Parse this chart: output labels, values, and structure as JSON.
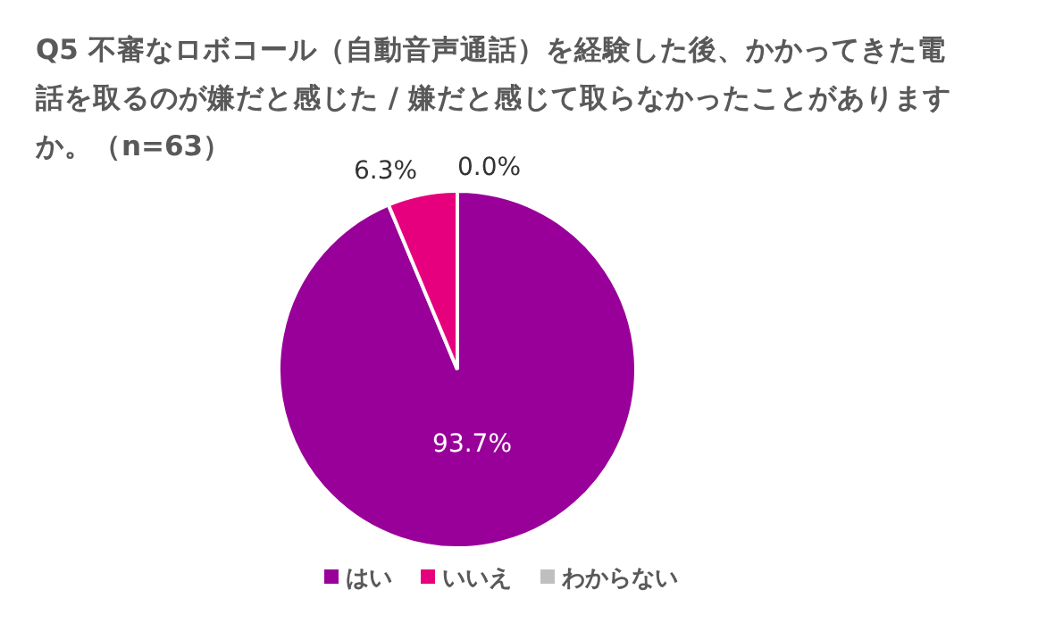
{
  "chart_data": {
    "type": "pie",
    "title": "Q5 不審なロボコール（自動音声通話）を経験した後、かかってきた電話を取るのが嫌だと感じた / 嫌だと感じて取らなかったことがありますか。（n=63）",
    "categories": [
      "はい",
      "いいえ",
      "わからない"
    ],
    "values": [
      93.7,
      6.3,
      0.0
    ],
    "colors": [
      "#990099",
      "#e6007e",
      "#bfbfbf"
    ],
    "value_labels": [
      "93.7%",
      "6.3%",
      "0.0%"
    ],
    "legend": "bottom"
  }
}
